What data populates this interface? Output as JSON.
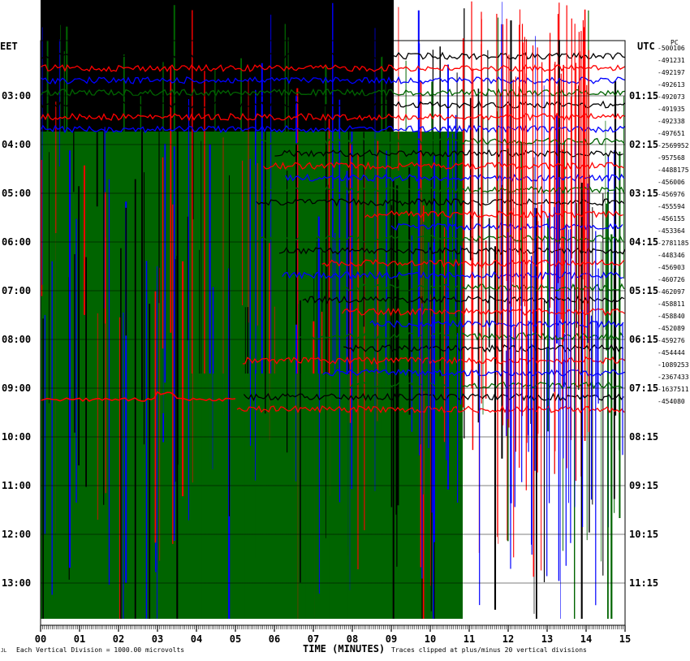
{
  "chart_data": {
    "type": "line",
    "left_timezone": "EET",
    "right_timezone": "UTC",
    "right_header": "PC",
    "left_hour_labels": [
      "03:00",
      "04:00",
      "05:00",
      "06:00",
      "07:00",
      "08:00",
      "09:00",
      "10:00",
      "11:00",
      "12:00",
      "13:00"
    ],
    "right_hour_labels": [
      "01:15",
      "02:15",
      "03:15",
      "04:15",
      "05:15",
      "06:15",
      "07:15",
      "08:15",
      "09:15",
      "10:15",
      "11:15"
    ],
    "x_ticks": [
      "00",
      "01",
      "02",
      "03",
      "04",
      "05",
      "06",
      "07",
      "08",
      "09",
      "10",
      "11",
      "12",
      "13",
      "14",
      "15"
    ],
    "xlim": [
      0,
      15
    ],
    "xlabel": "TIME (MINUTES)",
    "footer_left": "Each Vertical Division = 1000.00 microvolts",
    "footer_right": "Traces clipped at plus/minus 20 vertical divisions",
    "corner_mark": "JL",
    "trace_colors": [
      "#000000",
      "#ff0000",
      "#0000ff",
      "#006400"
    ],
    "trace_offsets": [
      "-500106",
      "-491231",
      "-492197",
      "-492613",
      "-492073",
      "-491935",
      "-492338",
      "-497651",
      "-2569952",
      "-957568",
      "-4488175",
      "-456006",
      "-456976",
      "-455594",
      "-456155",
      "-453364",
      "-2781185",
      "-448346",
      "-456903",
      "-460726",
      "-462097",
      "-458811",
      "-458840",
      "-452089",
      "-459276",
      "-454444",
      "-1089253",
      "-2367433",
      "-1637511",
      "-454080"
    ]
  }
}
